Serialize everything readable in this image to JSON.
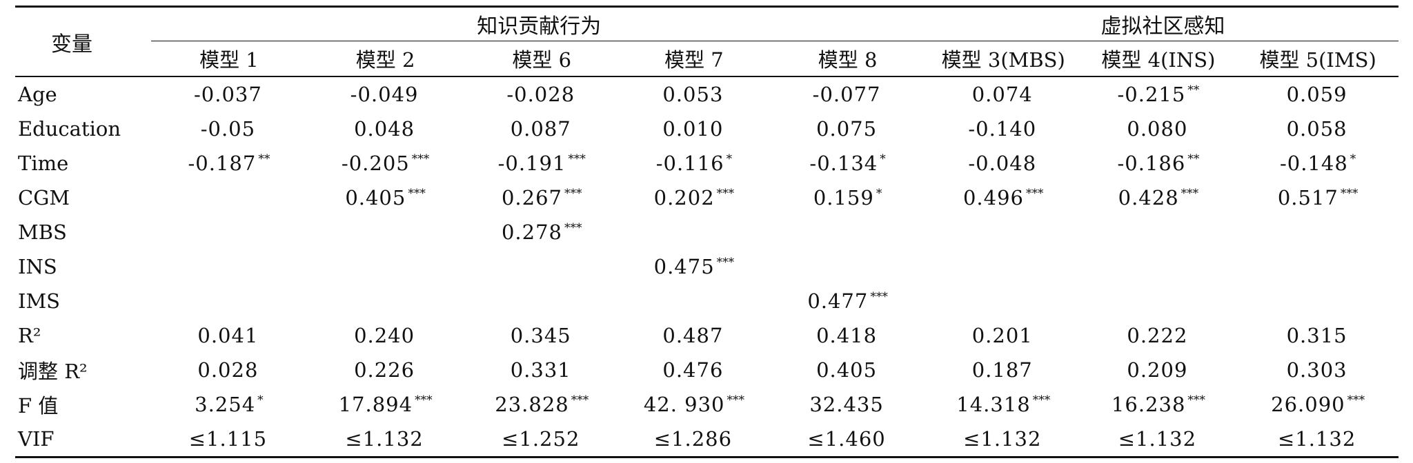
{
  "table": {
    "variable_header": "变量",
    "groups": [
      {
        "label": "知识贡献行为"
      },
      {
        "label": "虚拟社区感知"
      }
    ],
    "models": [
      "模型 1",
      "模型 2",
      "模型 6",
      "模型 7",
      "模型 8",
      "模型 3(MBS)",
      "模型 4(INS)",
      "模型 5(IMS)"
    ],
    "rows": [
      {
        "var": "Age",
        "cells": [
          {
            "v": "-0.037",
            "s": ""
          },
          {
            "v": "-0.049",
            "s": ""
          },
          {
            "v": "-0.028",
            "s": ""
          },
          {
            "v": "0.053",
            "s": ""
          },
          {
            "v": "-0.077",
            "s": ""
          },
          {
            "v": "0.074",
            "s": ""
          },
          {
            "v": "-0.215",
            "s": "**"
          },
          {
            "v": "0.059",
            "s": ""
          }
        ]
      },
      {
        "var": "Education",
        "cells": [
          {
            "v": "-0.05",
            "s": ""
          },
          {
            "v": "0.048",
            "s": ""
          },
          {
            "v": "0.087",
            "s": ""
          },
          {
            "v": "0.010",
            "s": ""
          },
          {
            "v": "0.075",
            "s": ""
          },
          {
            "v": "-0.140",
            "s": ""
          },
          {
            "v": "0.080",
            "s": ""
          },
          {
            "v": "0.058",
            "s": ""
          }
        ]
      },
      {
        "var": "Time",
        "cells": [
          {
            "v": "-0.187",
            "s": "**"
          },
          {
            "v": "-0.205",
            "s": "***"
          },
          {
            "v": "-0.191",
            "s": "***"
          },
          {
            "v": "-0.116",
            "s": "*"
          },
          {
            "v": "-0.134",
            "s": "*"
          },
          {
            "v": "-0.048",
            "s": ""
          },
          {
            "v": "-0.186",
            "s": "**"
          },
          {
            "v": "-0.148",
            "s": "*"
          }
        ]
      },
      {
        "var": "CGM",
        "cells": [
          {
            "v": "",
            "s": ""
          },
          {
            "v": "0.405",
            "s": "***"
          },
          {
            "v": "0.267",
            "s": "***"
          },
          {
            "v": "0.202",
            "s": "***"
          },
          {
            "v": "0.159",
            "s": "*"
          },
          {
            "v": "0.496",
            "s": "***"
          },
          {
            "v": "0.428",
            "s": "***"
          },
          {
            "v": "0.517",
            "s": "***"
          }
        ]
      },
      {
        "var": "MBS",
        "cells": [
          {
            "v": "",
            "s": ""
          },
          {
            "v": "",
            "s": ""
          },
          {
            "v": "0.278",
            "s": "***"
          },
          {
            "v": "",
            "s": ""
          },
          {
            "v": "",
            "s": ""
          },
          {
            "v": "",
            "s": ""
          },
          {
            "v": "",
            "s": ""
          },
          {
            "v": "",
            "s": ""
          }
        ]
      },
      {
        "var": "INS",
        "cells": [
          {
            "v": "",
            "s": ""
          },
          {
            "v": "",
            "s": ""
          },
          {
            "v": "",
            "s": ""
          },
          {
            "v": "0.475",
            "s": "***"
          },
          {
            "v": "",
            "s": ""
          },
          {
            "v": "",
            "s": ""
          },
          {
            "v": "",
            "s": ""
          },
          {
            "v": "",
            "s": ""
          }
        ]
      },
      {
        "var": "IMS",
        "cells": [
          {
            "v": "",
            "s": ""
          },
          {
            "v": "",
            "s": ""
          },
          {
            "v": "",
            "s": ""
          },
          {
            "v": "",
            "s": ""
          },
          {
            "v": "0.477",
            "s": "***"
          },
          {
            "v": "",
            "s": ""
          },
          {
            "v": "",
            "s": ""
          },
          {
            "v": "",
            "s": ""
          }
        ]
      },
      {
        "var": "R²",
        "cells": [
          {
            "v": "0.041",
            "s": ""
          },
          {
            "v": "0.240",
            "s": ""
          },
          {
            "v": "0.345",
            "s": ""
          },
          {
            "v": "0.487",
            "s": ""
          },
          {
            "v": "0.418",
            "s": ""
          },
          {
            "v": "0.201",
            "s": ""
          },
          {
            "v": "0.222",
            "s": ""
          },
          {
            "v": "0.315",
            "s": ""
          }
        ]
      },
      {
        "var": "调整 R²",
        "cells": [
          {
            "v": "0.028",
            "s": ""
          },
          {
            "v": "0.226",
            "s": ""
          },
          {
            "v": "0.331",
            "s": ""
          },
          {
            "v": "0.476",
            "s": ""
          },
          {
            "v": "0.405",
            "s": ""
          },
          {
            "v": "0.187",
            "s": ""
          },
          {
            "v": "0.209",
            "s": ""
          },
          {
            "v": "0.303",
            "s": ""
          }
        ]
      },
      {
        "var": "F 值",
        "cells": [
          {
            "v": "3.254",
            "s": "*"
          },
          {
            "v": "17.894",
            "s": "***"
          },
          {
            "v": "23.828",
            "s": "***"
          },
          {
            "v": "42. 930",
            "s": "***"
          },
          {
            "v": "32.435",
            "s": ""
          },
          {
            "v": "14.318",
            "s": "***"
          },
          {
            "v": "16.238",
            "s": "***"
          },
          {
            "v": "26.090",
            "s": "***"
          }
        ]
      },
      {
        "var": "VIF",
        "cells": [
          {
            "v": "≤1.115",
            "s": ""
          },
          {
            "v": "≤1.132",
            "s": ""
          },
          {
            "v": "≤1.252",
            "s": ""
          },
          {
            "v": "≤1.286",
            "s": ""
          },
          {
            "v": "≤1.460",
            "s": ""
          },
          {
            "v": "≤1.132",
            "s": ""
          },
          {
            "v": "≤1.132",
            "s": ""
          },
          {
            "v": "≤1.132",
            "s": ""
          }
        ]
      }
    ]
  }
}
